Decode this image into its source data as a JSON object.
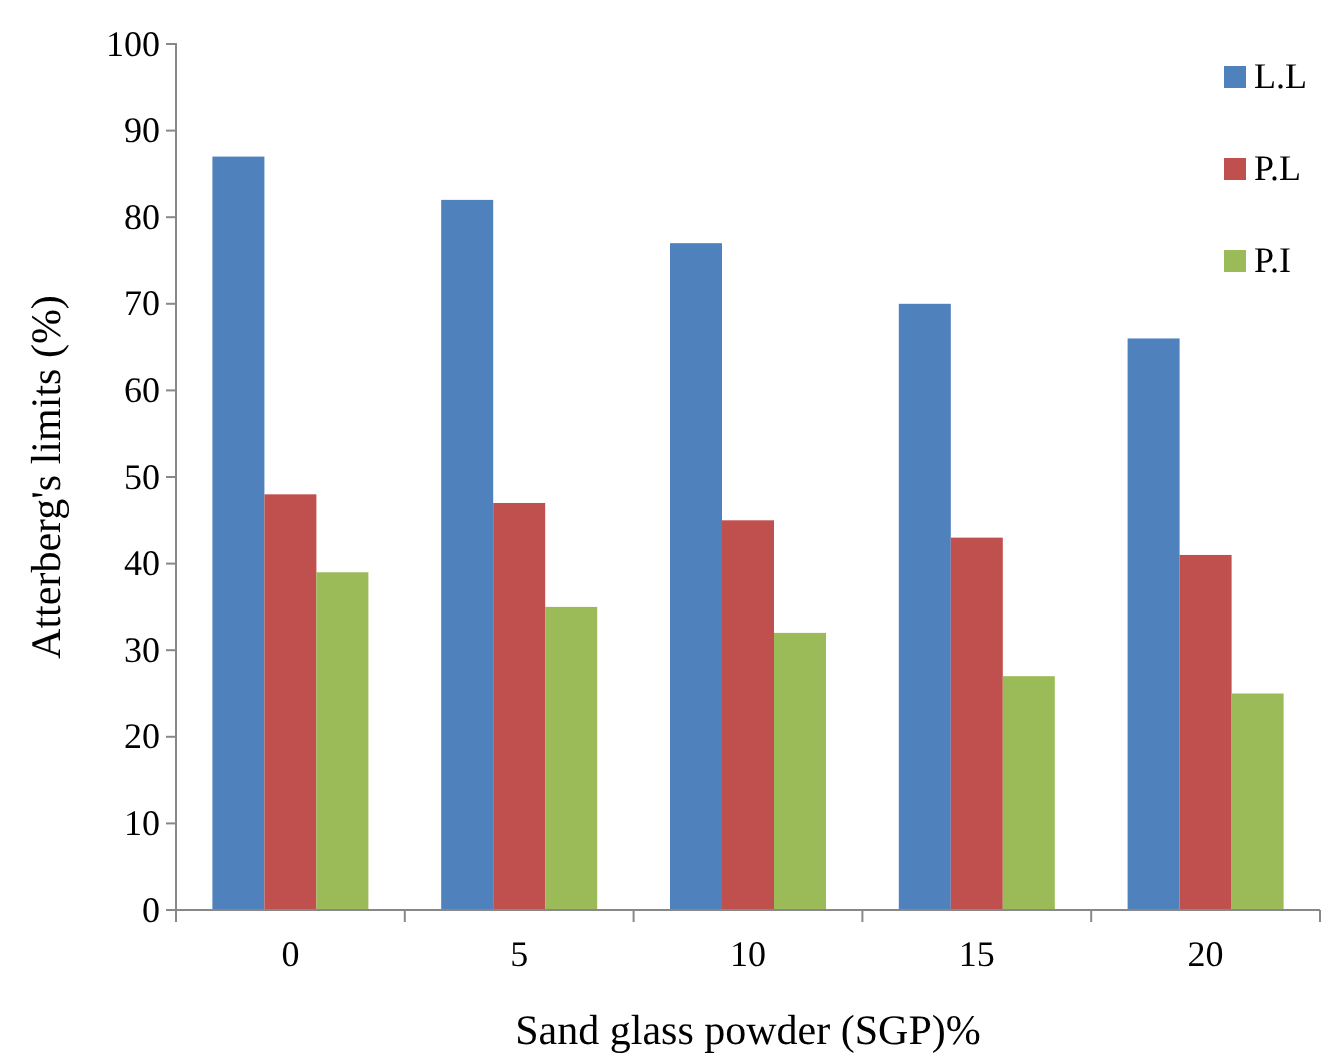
{
  "chart_data": {
    "type": "bar",
    "xlabel": "Sand glass powder (SGP)%",
    "ylabel": "Atterberg's limits (%)",
    "categories": [
      "0",
      "5",
      "10",
      "15",
      "20"
    ],
    "series": [
      {
        "name": "L.L",
        "color": "#4f81bd",
        "values": [
          87,
          82,
          77,
          70,
          66
        ]
      },
      {
        "name": "P.L",
        "color": "#c0504d",
        "values": [
          48,
          47,
          45,
          43,
          41
        ]
      },
      {
        "name": "P.I",
        "color": "#9bbb59",
        "values": [
          39,
          35,
          32,
          27,
          25
        ]
      }
    ],
    "ylim": [
      0,
      100
    ],
    "yticks": [
      0,
      10,
      20,
      30,
      40,
      50,
      60,
      70,
      80,
      90,
      100
    ],
    "grid": false,
    "legend": "top right"
  }
}
